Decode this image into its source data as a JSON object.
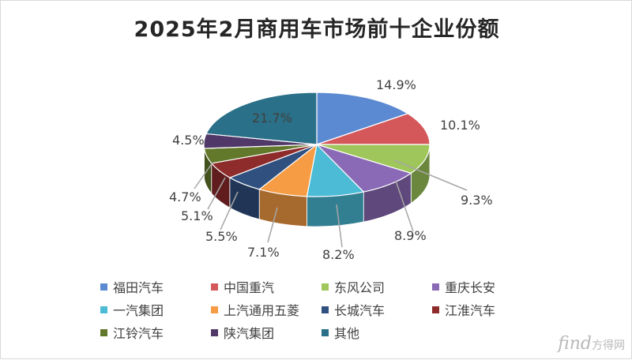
{
  "chart_data": {
    "type": "pie",
    "title": "2025年2月商用车市场前十企业份额",
    "categories": [
      "福田汽车",
      "中国重汽",
      "东风公司",
      "重庆长安",
      "一汽集团",
      "上汽通用五菱",
      "长城汽车",
      "江淮汽车",
      "江铃汽车",
      "陕汽集团",
      "其他"
    ],
    "values": [
      14.9,
      10.1,
      9.3,
      8.9,
      8.2,
      7.1,
      5.5,
      5.1,
      4.7,
      4.5,
      21.7
    ],
    "labels": [
      "14.9%",
      "10.1%",
      "9.3%",
      "8.9%",
      "8.2%",
      "7.1%",
      "5.5%",
      "5.1%",
      "4.7%",
      "4.5%",
      "21.7%"
    ],
    "colors": [
      "#5b8ad2",
      "#d4575a",
      "#9ec65a",
      "#8a6ab6",
      "#4bbbd6",
      "#f59c44",
      "#305080",
      "#8e2b2b",
      "#62782a",
      "#503868",
      "#2a7088"
    ],
    "style": "3d-exploded",
    "legend_position": "bottom"
  },
  "watermark": {
    "brand": "find",
    "suffix": "方得网"
  }
}
